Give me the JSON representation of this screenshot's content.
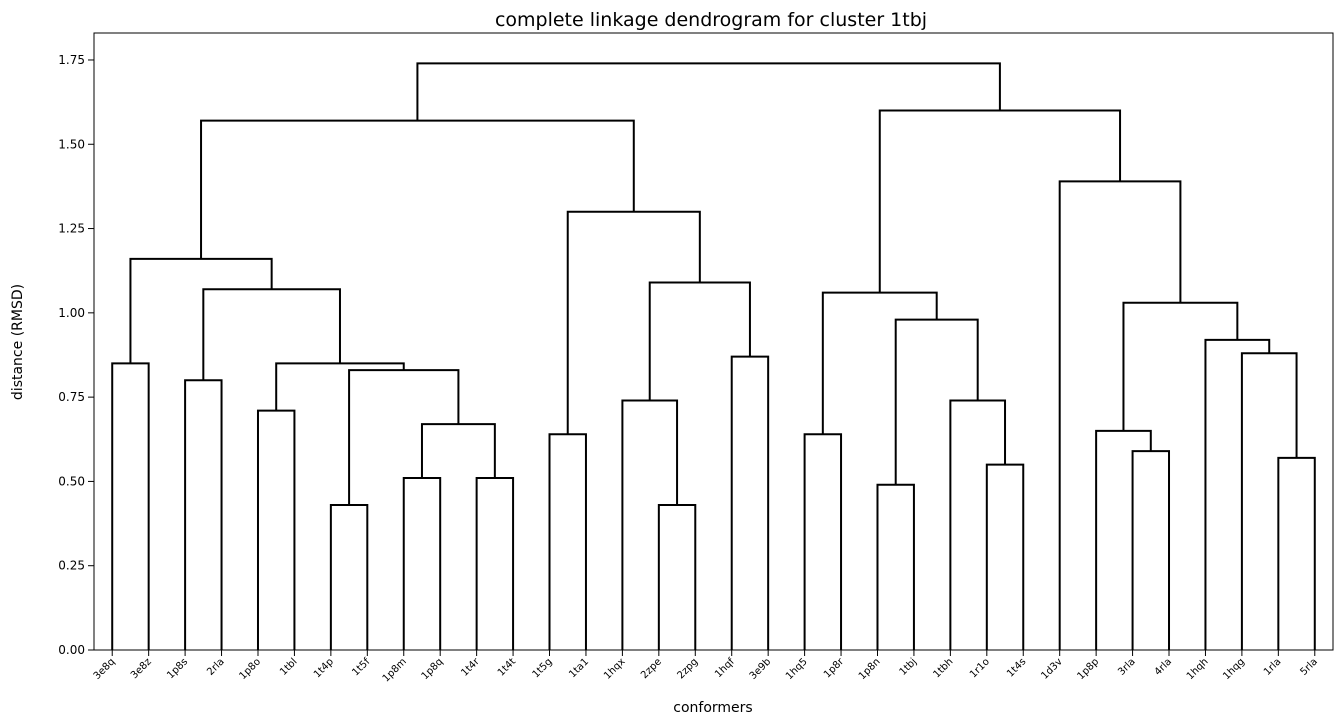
{
  "chart_data": {
    "type": "dendrogram",
    "title": "complete linkage dendrogram for cluster 1tbj",
    "xlabel": "conformers",
    "ylabel": "distance (RMSD)",
    "ylim": [
      0,
      1.83
    ],
    "yticks": [
      0.0,
      0.25,
      0.5,
      0.75,
      1.0,
      1.25,
      1.5,
      1.75
    ],
    "ytick_labels": [
      "0.00",
      "0.25",
      "0.50",
      "0.75",
      "1.00",
      "1.25",
      "1.50",
      "1.75"
    ],
    "grid": false,
    "leaves": [
      "3e8q",
      "3e8z",
      "1p8s",
      "2rla",
      "1p8o",
      "1tbl",
      "1t4p",
      "1t5f",
      "1p8m",
      "1p8q",
      "1t4r",
      "1t4t",
      "1t5g",
      "1ta1",
      "1hqx",
      "2zpe",
      "2zpg",
      "1hqf",
      "3e9b",
      "1hq5",
      "1p8r",
      "1p8n",
      "1tbj",
      "1tbh",
      "1r1o",
      "1t4s",
      "1d3v",
      "1p8p",
      "3rla",
      "4rla",
      "1hqh",
      "1hqg",
      "1rla",
      "5rla"
    ],
    "merges": [
      {
        "left": "leaf:0",
        "right": "leaf:1",
        "height": 0.85
      },
      {
        "left": "leaf:2",
        "right": "leaf:3",
        "height": 0.8
      },
      {
        "left": "leaf:4",
        "right": "leaf:5",
        "height": 0.71
      },
      {
        "left": "leaf:6",
        "right": "leaf:7",
        "height": 0.43
      },
      {
        "left": "leaf:8",
        "right": "leaf:9",
        "height": 0.51
      },
      {
        "left": "leaf:10",
        "right": "leaf:11",
        "height": 0.51
      },
      {
        "left": "node:4",
        "right": "node:5",
        "height": 0.67
      },
      {
        "left": "node:3",
        "right": "node:6",
        "height": 0.83
      },
      {
        "left": "node:2",
        "right": "node:7",
        "height": 0.85
      },
      {
        "left": "node:1",
        "right": "node:8",
        "height": 1.07
      },
      {
        "left": "node:0",
        "right": "node:9",
        "height": 1.16
      },
      {
        "left": "leaf:12",
        "right": "leaf:13",
        "height": 0.64
      },
      {
        "left": "leaf:15",
        "right": "leaf:16",
        "height": 0.43
      },
      {
        "left": "leaf:14",
        "right": "node:12",
        "height": 0.74
      },
      {
        "left": "leaf:17",
        "right": "leaf:18",
        "height": 0.87
      },
      {
        "left": "node:13",
        "right": "node:14",
        "height": 1.09
      },
      {
        "left": "node:11",
        "right": "node:15",
        "height": 1.3
      },
      {
        "left": "node:10",
        "right": "node:16",
        "height": 1.57
      },
      {
        "left": "leaf:19",
        "right": "leaf:20",
        "height": 0.64
      },
      {
        "left": "leaf:21",
        "right": "leaf:22",
        "height": 0.49
      },
      {
        "left": "leaf:24",
        "right": "leaf:25",
        "height": 0.55
      },
      {
        "left": "leaf:23",
        "right": "node:20",
        "height": 0.74
      },
      {
        "left": "node:19",
        "right": "node:21",
        "height": 0.98
      },
      {
        "left": "node:18",
        "right": "node:22",
        "height": 1.06
      },
      {
        "left": "leaf:28",
        "right": "leaf:29",
        "height": 0.59
      },
      {
        "left": "leaf:27",
        "right": "node:24",
        "height": 0.65
      },
      {
        "left": "leaf:32",
        "right": "leaf:33",
        "height": 0.57
      },
      {
        "left": "leaf:31",
        "right": "node:26",
        "height": 0.88
      },
      {
        "left": "leaf:30",
        "right": "node:27",
        "height": 0.92
      },
      {
        "left": "node:25",
        "right": "node:28",
        "height": 1.03
      },
      {
        "left": "leaf:26",
        "right": "node:29",
        "height": 1.39
      },
      {
        "left": "node:23",
        "right": "node:30",
        "height": 1.6
      },
      {
        "left": "node:17",
        "right": "node:31",
        "height": 1.74
      }
    ],
    "link_color": "#000000"
  }
}
